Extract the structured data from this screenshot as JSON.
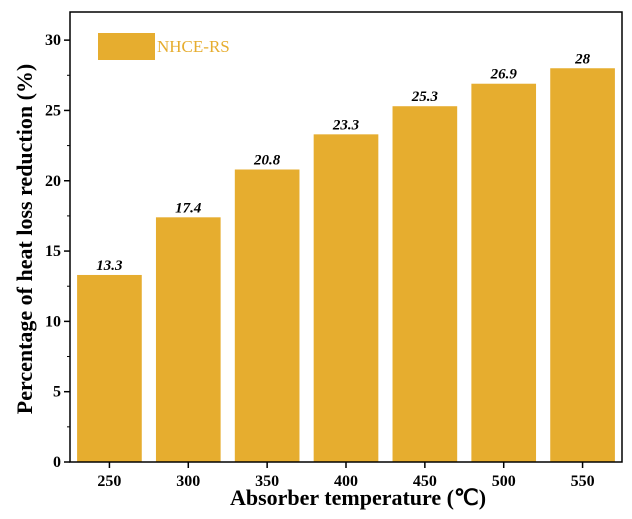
{
  "chart_data": {
    "type": "bar",
    "categories": [
      "250",
      "300",
      "350",
      "400",
      "450",
      "500",
      "550"
    ],
    "series": [
      {
        "name": "NHCE-RS",
        "values": [
          13.3,
          17.4,
          20.8,
          23.3,
          25.3,
          26.9,
          28
        ]
      }
    ],
    "data_labels": [
      "13.3",
      "17.4",
      "20.8",
      "23.3",
      "25.3",
      "26.9",
      "28"
    ],
    "xlabel": "Absorber temperature (℃)",
    "ylabel": "Percentage of heat loss reduction (%)",
    "ylim": [
      0,
      32
    ],
    "yticks": [
      "0",
      "5",
      "10",
      "15",
      "20",
      "25",
      "30"
    ],
    "bar_color": "#E6AD2F",
    "legend": {
      "label": "NHCE-RS",
      "position": "top-left"
    },
    "grid": false
  }
}
